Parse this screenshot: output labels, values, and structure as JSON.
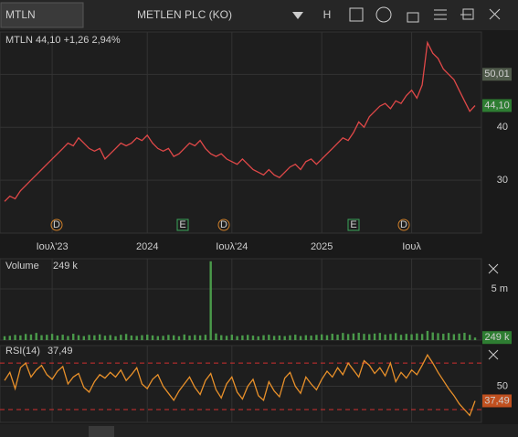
{
  "toolbar": {
    "symbol": "MTLN",
    "name": "METLEN PLC (KO)",
    "interval": "H"
  },
  "chart_data": [
    {
      "type": "line",
      "legend": "MTLN 44,10 +1,26 2,94%",
      "color": "#e04848",
      "categories": [
        null,
        null,
        null,
        null,
        null,
        null,
        null,
        null,
        null,
        "Ιουλ'23",
        null,
        null,
        null,
        null,
        null,
        null,
        null,
        null,
        null,
        null,
        null,
        null,
        null,
        null,
        null,
        null,
        null,
        "2024",
        null,
        null,
        null,
        null,
        null,
        null,
        null,
        null,
        null,
        null,
        null,
        null,
        null,
        null,
        null,
        "Ιουλ'24",
        null,
        null,
        null,
        null,
        null,
        null,
        null,
        null,
        null,
        null,
        null,
        null,
        null,
        null,
        null,
        null,
        "2025",
        null,
        null,
        null,
        null,
        null,
        null,
        null,
        null,
        null,
        null,
        null,
        null,
        null,
        null,
        null,
        null,
        "Ιουλ",
        null,
        null,
        null,
        null,
        null,
        null,
        null,
        null,
        null,
        null,
        null,
        null
      ],
      "values": [
        26,
        27,
        26.5,
        28,
        29,
        30,
        31,
        32,
        33,
        34,
        35,
        36,
        37,
        36.5,
        38,
        37,
        36,
        35.5,
        36,
        34,
        35,
        36,
        37,
        36.5,
        37,
        38,
        37.5,
        38.5,
        37,
        36,
        35.5,
        36,
        34.5,
        35,
        36,
        37,
        36.5,
        37.5,
        36,
        35,
        34.5,
        35,
        34,
        33.5,
        33,
        34,
        33,
        32,
        31.5,
        31,
        32,
        31,
        30.5,
        31.5,
        32.5,
        33,
        32,
        33.5,
        34,
        33,
        34,
        35,
        36,
        37,
        38,
        37.5,
        39,
        41,
        40,
        42,
        43,
        44,
        44.5,
        43.5,
        45,
        44.5,
        46,
        47,
        45.5,
        48,
        56,
        54,
        53,
        51,
        50,
        49,
        47,
        45,
        43,
        44.1
      ],
      "ylim": [
        20,
        58
      ],
      "yticks": [
        30,
        40,
        50
      ],
      "grid": true,
      "price_markers": [
        {
          "value": 50.01,
          "label": "50,01",
          "color": "#4f5a4a"
        },
        {
          "value": 44.1,
          "label": "44,10",
          "color": "#2e7d32"
        }
      ],
      "events": [
        "D",
        "E",
        "D",
        "E",
        "D"
      ]
    },
    {
      "type": "bar",
      "title": "Volume",
      "color": "#4a9a4a",
      "values": [
        380000,
        420000,
        510000,
        460000,
        600000,
        550000,
        700000,
        480000,
        520000,
        610000,
        450000,
        530000,
        400000,
        620000,
        480000,
        390000,
        510000,
        470000,
        560000,
        430000,
        490000,
        380000,
        520000,
        600000,
        450000,
        410000,
        480000,
        530000,
        460000,
        390000,
        420000,
        510000,
        470000,
        380000,
        550000,
        440000,
        500000,
        460000,
        520000,
        7700000,
        650000,
        480000,
        420000,
        530000,
        390000,
        460000,
        510000,
        440000,
        370000,
        480000,
        520000,
        410000,
        450000,
        390000,
        470000,
        530000,
        400000,
        480000,
        440000,
        510000,
        560000,
        480000,
        620000,
        540000,
        700000,
        590000,
        650000,
        720000,
        610000,
        580000,
        640000,
        700000,
        550000,
        600000,
        680000,
        520000,
        610000,
        570000,
        650000,
        600000,
        900000,
        750000,
        680000,
        620000,
        700000,
        580000,
        640000,
        710000,
        520000,
        249000
      ],
      "ylim": [
        0,
        7950000
      ],
      "yticks": [
        {
          "value": 5000000,
          "label": "5 m"
        }
      ],
      "last_value": {
        "value": 249000,
        "label": "249 k"
      }
    },
    {
      "type": "line",
      "title": "RSI(14)",
      "color": "#e8902a",
      "values": [
        55,
        62,
        48,
        66,
        70,
        58,
        64,
        68,
        60,
        56,
        63,
        67,
        52,
        58,
        61,
        49,
        45,
        54,
        60,
        57,
        62,
        58,
        64,
        55,
        60,
        66,
        52,
        48,
        56,
        60,
        50,
        44,
        38,
        46,
        52,
        58,
        49,
        43,
        55,
        61,
        47,
        40,
        52,
        58,
        45,
        39,
        50,
        56,
        42,
        38,
        54,
        46,
        41,
        57,
        62,
        50,
        44,
        58,
        52,
        47,
        56,
        63,
        58,
        66,
        60,
        70,
        64,
        58,
        72,
        68,
        61,
        66,
        59,
        70,
        54,
        62,
        57,
        64,
        60,
        68,
        77,
        70,
        62,
        55,
        48,
        42,
        35,
        30,
        25,
        37.49
      ],
      "ylim": [
        19,
        85
      ],
      "yticks": [
        50
      ],
      "levels": [
        70,
        30
      ],
      "level_color": "#d03030",
      "last_value": {
        "value": 37.49,
        "label": "37,49"
      }
    }
  ]
}
